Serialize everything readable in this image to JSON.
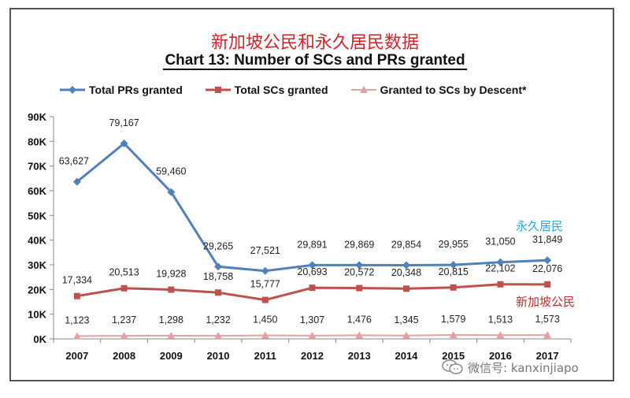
{
  "header": {
    "cn_title": "新加坡公民和永久居民数据",
    "chart_title": "Chart 13: Number of SCs and PRs granted"
  },
  "annotations": {
    "pr_cn": "永久居民",
    "sc_cn": "新加坡公民"
  },
  "watermark": {
    "text": "微信号: kanxinjiapo"
  },
  "colors": {
    "pr": "#4f81bd",
    "sc": "#c0504d",
    "descent": "#e6a0a0",
    "title_cn": "#d1232a",
    "ann_pr": "#2aa7d9",
    "ann_sc": "#d1232a"
  },
  "chart_data": {
    "type": "line",
    "title": "Chart 13: Number of SCs and PRs granted",
    "xlabel": "",
    "ylabel": "",
    "ylim": [
      0,
      90000
    ],
    "y_ticks": [
      "0K",
      "10K",
      "20K",
      "30K",
      "40K",
      "50K",
      "60K",
      "70K",
      "80K",
      "90K"
    ],
    "categories": [
      "2007",
      "2008",
      "2009",
      "2010",
      "2011",
      "2012",
      "2013",
      "2014",
      "2015",
      "2016",
      "2017"
    ],
    "legend_position": "top",
    "series": [
      {
        "name": "Total PRs granted",
        "marker": "diamond",
        "values": [
          63627,
          79167,
          59460,
          29265,
          27521,
          29891,
          29869,
          29854,
          29955,
          31050,
          31849
        ],
        "labels": [
          "63,627",
          "79,167",
          "59,460",
          "29,265",
          "27,521",
          "29,891",
          "29,869",
          "29,854",
          "29,955",
          "31,050",
          "31,849"
        ]
      },
      {
        "name": "Total SCs granted",
        "marker": "square",
        "values": [
          17334,
          20513,
          19928,
          18758,
          15777,
          20693,
          20572,
          20348,
          20815,
          22102,
          22076
        ],
        "labels": [
          "17,334",
          "20,513",
          "19,928",
          "18,758",
          "15,777",
          "20,693",
          "20,572",
          "20,348",
          "20,815",
          "22,102",
          "22,076"
        ]
      },
      {
        "name": "Granted to SCs by Descent*",
        "marker": "triangle",
        "values": [
          1123,
          1237,
          1298,
          1232,
          1450,
          1307,
          1476,
          1345,
          1579,
          1513,
          1573
        ],
        "labels": [
          "1,123",
          "1,237",
          "1,298",
          "1,232",
          "1,450",
          "1,307",
          "1,476",
          "1,345",
          "1,579",
          "1,513",
          "1,573"
        ]
      }
    ]
  }
}
